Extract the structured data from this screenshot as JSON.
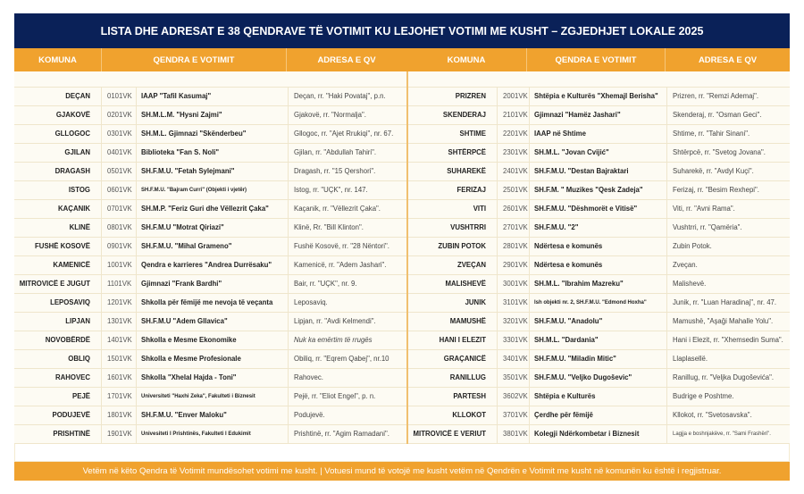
{
  "title": "LISTA DHE ADRESAT E 38 QENDRAVE TË VOTIMIT KU LEJOHET VOTIMI ME KUSHT – ZGJEDHJET LOKALE 2025",
  "columns": {
    "komuna": "KOMUNA",
    "qendra": "QENDRA E VOTIMIT",
    "adresa": "ADRESA E QV"
  },
  "colors": {
    "title_bg": "#0a2158",
    "header_bg": "#f0a22e"
  },
  "left_rows": [
    {
      "komuna": "DEÇAN",
      "code": "0101VK",
      "name": "IAAP \"Tafil Kasumaj\"",
      "address": "Deçan, rr. \"Haki Povataj\", p.n."
    },
    {
      "komuna": "GJAKOVË",
      "code": "0201VK",
      "name": "SH.M.L.M. \"Hysni Zajmi\"",
      "address": "Gjakovë, rr. \"Normalja\"."
    },
    {
      "komuna": "GLLOGOC",
      "code": "0301VK",
      "name": "SH.M.L. Gjimnazi \"Skënderbeu\"",
      "address": "Gllogoc, rr. \"Ajet Rrukiqi\", nr. 67."
    },
    {
      "komuna": "GJILAN",
      "code": "0401VK",
      "name": "Biblioteka \"Fan S. Noli\"",
      "address": "Gjilan, rr. \"Abdullah Tahiri\"."
    },
    {
      "komuna": "DRAGASH",
      "code": "0501VK",
      "name": "SH.F.M.U. \"Fetah Sylejmani\"",
      "address": "Dragash, rr. \"15 Qershori\"."
    },
    {
      "komuna": "ISTOG",
      "code": "0601VK",
      "name": "SH.F.M.U. \"Bajram Curri\" (Objekti i vjetër)",
      "address": "Istog, rr. \"UÇK\", nr. 147."
    },
    {
      "komuna": "KAÇANIK",
      "code": "0701VK",
      "name": "SH.M.P. \"Feriz Guri dhe Vëllezrit Çaka\"",
      "address": "Kaçanik, rr. \"Vëllezrit Çaka\"."
    },
    {
      "komuna": "KLINË",
      "code": "0801VK",
      "name": "SH.F.M.U \"Motrat Qiriazi\"",
      "address": "Klinë, Rr. \"Bill Klinton\"."
    },
    {
      "komuna": "FUSHË KOSOVË",
      "code": "0901VK",
      "name": "SH.F.M.U. \"Mihal Grameno\"",
      "address": "Fushë Kosovë, rr. \"28 Nëntori\"."
    },
    {
      "komuna": "KAMENICË",
      "code": "1001VK",
      "name": "Qendra e karrieres \"Andrea Durrësaku\"",
      "address": "Kamenicë, rr. \"Adem Jashari\"."
    },
    {
      "komuna": "MITROVICË E JUGUT",
      "code": "1101VK",
      "name": "Gjimnazi \"Frank Bardhi\"",
      "address": "Bair, rr. \"UÇK\", nr. 9."
    },
    {
      "komuna": "LEPOSAVIQ",
      "code": "1201VK",
      "name": "Shkolla për fëmijë me nevoja të veçanta",
      "address": "Leposaviq."
    },
    {
      "komuna": "LIPJAN",
      "code": "1301VK",
      "name": "SH.F.M.U \"Adem Gllavica\"",
      "address": "Lipjan, rr. \"Avdi Kelmendi\"."
    },
    {
      "komuna": "NOVOBËRDË",
      "code": "1401VK",
      "name": "Shkolla e Mesme Ekonomike",
      "address": "Nuk ka emërtim të rrugës"
    },
    {
      "komuna": "OBLIQ",
      "code": "1501VK",
      "name": "Shkolla e Mesme Profesionale",
      "address": "Obiliq, rr. \"Eqrem Qabej\", nr.10"
    },
    {
      "komuna": "RAHOVEC",
      "code": "1601VK",
      "name": "Shkolla \"Xhelal Hajda - Toni\"",
      "address": "Rahovec."
    },
    {
      "komuna": "PEJË",
      "code": "1701VK",
      "name": "Universiteti \"Haxhi Zeka\", Fakulteti i Biznesit",
      "address": "Pejë, rr. \"Eliot Engel\", p. n."
    },
    {
      "komuna": "PODUJEVË",
      "code": "1801VK",
      "name": "SH.F.M.U. \"Enver Maloku\"",
      "address": "Podujevë."
    },
    {
      "komuna": "PRISHTINË",
      "code": "1901VK",
      "name": "Univesiteti I Prishtinës, Fakulteti I Edukimit",
      "address": "Prishtinë, rr. \"Agim Ramadani\"."
    }
  ],
  "right_rows": [
    {
      "komuna": "PRIZREN",
      "code": "2001VK",
      "name": "Shtëpia e Kulturës \"Xhemajl Berisha\"",
      "address": "Prizren, rr. \"Remzi Ademaj\"."
    },
    {
      "komuna": "SKENDERAJ",
      "code": "2101VK",
      "name": "Gjimnazi \"Hamëz Jashari\"",
      "address": "Skenderaj, rr. \"Osman Geci\"."
    },
    {
      "komuna": "SHTIME",
      "code": "2201VK",
      "name": "IAAP në Shtime",
      "address": "Shtime, rr. \"Tahir Sinani\"."
    },
    {
      "komuna": "SHTËRPCË",
      "code": "2301VK",
      "name": "SH.M.L. \"Jovan Cvijić\"",
      "address": "Shtërpcë, rr. \"Svetog Jovana\"."
    },
    {
      "komuna": "SUHAREKË",
      "code": "2401VK",
      "name": "SH.F.M.U. \"Destan Bajraktari",
      "address": "Suharekë, rr. \"Avdyl Kuçi\"."
    },
    {
      "komuna": "FERIZAJ",
      "code": "2501VK",
      "name": "SH.F.M. \" Muzikes \"Qesk Zadeja\"",
      "address": "Ferizaj, rr. \"Besim Rexhepi\"."
    },
    {
      "komuna": "VITI",
      "code": "2601VK",
      "name": "SH.F.M.U. \"Dëshmorët e Vitisë\"",
      "address": "Viti, rr. \"Avni Rama\"."
    },
    {
      "komuna": "VUSHTRRI",
      "code": "2701VK",
      "name": "SH.F.M.U. \"2\"",
      "address": "Vushtrri, rr. \"Qamëria\"."
    },
    {
      "komuna": "ZUBIN POTOK",
      "code": "2801VK",
      "name": "Ndërtesa e komunës",
      "address": "Zubin Potok."
    },
    {
      "komuna": "ZVEÇAN",
      "code": "2901VK",
      "name": "Ndërtesa e komunës",
      "address": "Zveçan."
    },
    {
      "komuna": "MALISHEVË",
      "code": "3001VK",
      "name": "SH.M.L. \"Ibrahim Mazreku\"",
      "address": "Malishevë."
    },
    {
      "komuna": "JUNIK",
      "code": "3101VK",
      "name": "Ish objekti nr. 2, SH.F.M.U. \"Edmond Hoxha\"",
      "address": "Junik, rr. \"Luan Haradinaj\", nr. 47."
    },
    {
      "komuna": "MAMUSHË",
      "code": "3201VK",
      "name": "SH.F.M.U. \"Anadolu\"",
      "address": "Mamushë, \"Aşaği Mahalle Yolu\"."
    },
    {
      "komuna": "HANI I ELEZIT",
      "code": "3301VK",
      "name": "SH.M.L. \"Dardania\"",
      "address": "Hani i Elezit, rr. \"Xhemsedin Suma\"."
    },
    {
      "komuna": "GRAÇANICË",
      "code": "3401VK",
      "name": "SH.F.M.U. \"Miladin Mitic\"",
      "address": "Llaplasellë."
    },
    {
      "komuna": "RANILLUG",
      "code": "3501VK",
      "name": "SH.F.M.U. \"Veljko Dugoševic\"",
      "address": "Ranillug, rr. \"Veljka Dugoševića\"."
    },
    {
      "komuna": "PARTESH",
      "code": "3602VK",
      "name": "Shtëpia e Kulturës",
      "address": "Budrige e Poshtme."
    },
    {
      "komuna": "KLLOKOT",
      "code": "3701VK",
      "name": "Çerdhe për fëmijë",
      "address": "Kllokot, rr. \"Svetosavska\"."
    },
    {
      "komuna": "MITROVICË E VERIUT",
      "code": "3801VK",
      "name": "Kolegji Ndërkombetar i Biznesit",
      "address": "Lagjja e boshnjakëve, rr. \"Sami Frashëri\"."
    }
  ],
  "footer": "Vetëm në këto Qendra të Votimit mundësohet votimi me kusht.  |  Votuesi mund të votojë me kusht vetëm në Qendrën e Votimit me kusht në komunën ku është i regjistruar."
}
